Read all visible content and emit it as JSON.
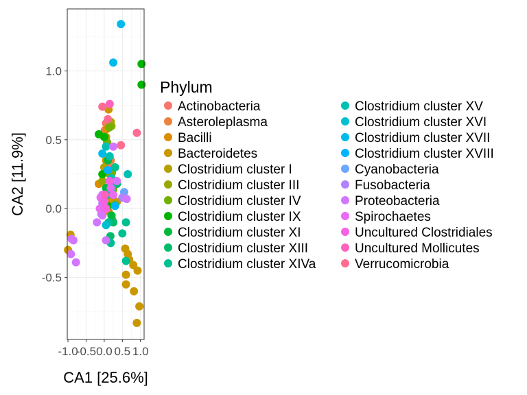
{
  "chart_data": {
    "type": "scatter",
    "xlabel": "CA1   [25.6%]",
    "ylabel": "CA2   [11.9%]",
    "xlim": [
      -1.02,
      1.1
    ],
    "ylim": [
      -0.95,
      1.45
    ],
    "x_ticks": [
      -1.0,
      -0.5,
      0.0,
      0.5,
      1.0
    ],
    "x_tick_labels": [
      "-1.0",
      "-0.5",
      "0.0",
      "0.5",
      "1.0"
    ],
    "y_ticks": [
      -0.5,
      0.0,
      0.5,
      1.0
    ],
    "y_tick_labels": [
      "-0.5",
      "0.0",
      "0.5",
      "1.0"
    ],
    "grid": true,
    "legend_placement": "right",
    "legend_title": "Phylum",
    "series": [
      {
        "name": "Actinobacteria",
        "color": "#F8766D",
        "points": [
          [
            0.05,
            0.62
          ],
          [
            0.12,
            0.3
          ]
        ]
      },
      {
        "name": "Asteroleplasma",
        "color": "#EC823C",
        "points": [
          [
            0.02,
            0.57
          ],
          [
            0.18,
            0.35
          ]
        ]
      },
      {
        "name": "Bacilli",
        "color": "#DD8D00",
        "points": [
          [
            0.08,
            0.58
          ],
          [
            -0.15,
            0.18
          ],
          [
            0.2,
            0.05
          ],
          [
            0.05,
            0.35
          ],
          [
            0.12,
            -0.02
          ]
        ]
      },
      {
        "name": "Bacteroidetes",
        "color": "#CA9700",
        "points": [
          [
            -1.0,
            -0.3
          ],
          [
            -0.93,
            -0.19
          ],
          [
            0.58,
            -0.29
          ],
          [
            0.65,
            -0.33
          ],
          [
            0.69,
            -0.37
          ],
          [
            0.8,
            -0.41
          ],
          [
            0.92,
            -0.45
          ],
          [
            0.82,
            -0.6
          ],
          [
            0.97,
            -0.71
          ],
          [
            0.9,
            -0.83
          ],
          [
            0.6,
            -0.48
          ],
          [
            0.6,
            -0.55
          ],
          [
            0.22,
            -0.08
          ],
          [
            0.12,
            0.72
          ],
          [
            0.15,
            0.08
          ],
          [
            0.25,
            -0.1
          ],
          [
            0.02,
            0.02
          ],
          [
            0.35,
            0.05
          ]
        ]
      },
      {
        "name": "Clostridium cluster I",
        "color": "#B3A000",
        "points": [
          [
            0.18,
            0.63
          ],
          [
            0.05,
            0.52
          ],
          [
            0.0,
            0.3
          ]
        ]
      },
      {
        "name": "Clostridium cluster III",
        "color": "#97A900",
        "points": [
          [
            0.2,
            0.6
          ],
          [
            0.15,
            0.25
          ],
          [
            -0.05,
            0.2
          ]
        ]
      },
      {
        "name": "Clostridium cluster IV",
        "color": "#71B000",
        "points": [
          [
            0.14,
            0.59
          ],
          [
            0.08,
            0.48
          ],
          [
            0.21,
            0.26
          ],
          [
            0.25,
            0.14
          ],
          [
            0.3,
            0.03
          ]
        ]
      },
      {
        "name": "Clostridium cluster IX",
        "color": "#00B400",
        "points": [
          [
            1.03,
            1.05
          ],
          [
            1.03,
            0.9
          ],
          [
            -0.15,
            0.54
          ],
          [
            0.0,
            0.52
          ],
          [
            -0.05,
            0.25
          ],
          [
            0.1,
            0.02
          ]
        ]
      },
      {
        "name": "Clostridium cluster XI",
        "color": "#00B83A",
        "points": [
          [
            0.1,
            0.35
          ],
          [
            0.05,
            0.15
          ],
          [
            0.2,
            -0.05
          ]
        ]
      },
      {
        "name": "Clostridium cluster XIII",
        "color": "#00BC69",
        "points": [
          [
            0.25,
            -0.1
          ],
          [
            0.17,
            -0.2
          ],
          [
            0.35,
            0.18
          ]
        ]
      },
      {
        "name": "Clostridium cluster XIVa",
        "color": "#00BF91",
        "points": [
          [
            0.3,
            0.3
          ],
          [
            0.12,
            -0.1
          ],
          [
            0.6,
            -0.1
          ],
          [
            0.5,
            -0.18
          ],
          [
            0.6,
            -0.38
          ],
          [
            0.18,
            -0.25
          ],
          [
            0.08,
            0.1
          ]
        ]
      },
      {
        "name": "Clostridium cluster XV",
        "color": "#00C0B3",
        "points": [
          [
            0.15,
            0.38
          ],
          [
            0.65,
            0.25
          ],
          [
            0.2,
            0.22
          ],
          [
            0.05,
            0.45
          ]
        ]
      },
      {
        "name": "Clostridium cluster XVI",
        "color": "#00BFD1",
        "points": [
          [
            0.2,
            0.15
          ],
          [
            0.05,
            -0.12
          ]
        ]
      },
      {
        "name": "Clostridium cluster XVII",
        "color": "#00BBEA",
        "points": [
          [
            0.25,
            1.06
          ],
          [
            0.46,
            1.34
          ],
          [
            -0.05,
            0.4
          ]
        ]
      },
      {
        "name": "Clostridium cluster XVIII",
        "color": "#00B3FE",
        "points": [
          [
            0.3,
            0.02
          ],
          [
            0.1,
            0.28
          ]
        ]
      },
      {
        "name": "Cyanobacteria",
        "color": "#6BA6FF",
        "points": [
          [
            0.55,
            0.12
          ]
        ]
      },
      {
        "name": "Fusobacteria",
        "color": "#B283FF",
        "points": [
          [
            0.5,
            0.08
          ],
          [
            -0.05,
            0.04
          ]
        ]
      },
      {
        "name": "Proteobacteria",
        "color": "#D376FF",
        "points": [
          [
            -0.9,
            -0.22
          ],
          [
            -0.85,
            -0.23
          ],
          [
            -0.92,
            -0.33
          ],
          [
            -0.78,
            -0.39
          ],
          [
            -0.2,
            -0.1
          ],
          [
            -0.05,
            0.1
          ],
          [
            -0.05,
            -0.05
          ],
          [
            0.05,
            -0.23
          ],
          [
            0.35,
            0.2
          ],
          [
            0.62,
            0.07
          ],
          [
            -0.08,
            -0.04
          ],
          [
            0.25,
            0.45
          ]
        ]
      },
      {
        "name": "Spirochaetes",
        "color": "#E76BF3",
        "points": [
          [
            -0.12,
            0.0
          ],
          [
            -0.1,
            0.08
          ],
          [
            0.18,
            0.15
          ],
          [
            0.25,
            0.1
          ]
        ]
      },
      {
        "name": "Uncultured Clostridiales",
        "color": "#F563E3",
        "points": [
          [
            0.05,
            0.0
          ],
          [
            0.15,
            0.2
          ],
          [
            0.0,
            0.05
          ]
        ]
      },
      {
        "name": "Uncultured Mollicutes",
        "color": "#FF62BC",
        "points": [
          [
            0.15,
            0.76
          ],
          [
            0.02,
            0.1
          ]
        ]
      },
      {
        "name": "Verrucomicrobia",
        "color": "#FF6C91",
        "points": [
          [
            -0.05,
            0.74
          ],
          [
            0.1,
            0.65
          ],
          [
            0.9,
            0.55
          ],
          [
            0.46,
            0.46
          ]
        ]
      }
    ]
  }
}
